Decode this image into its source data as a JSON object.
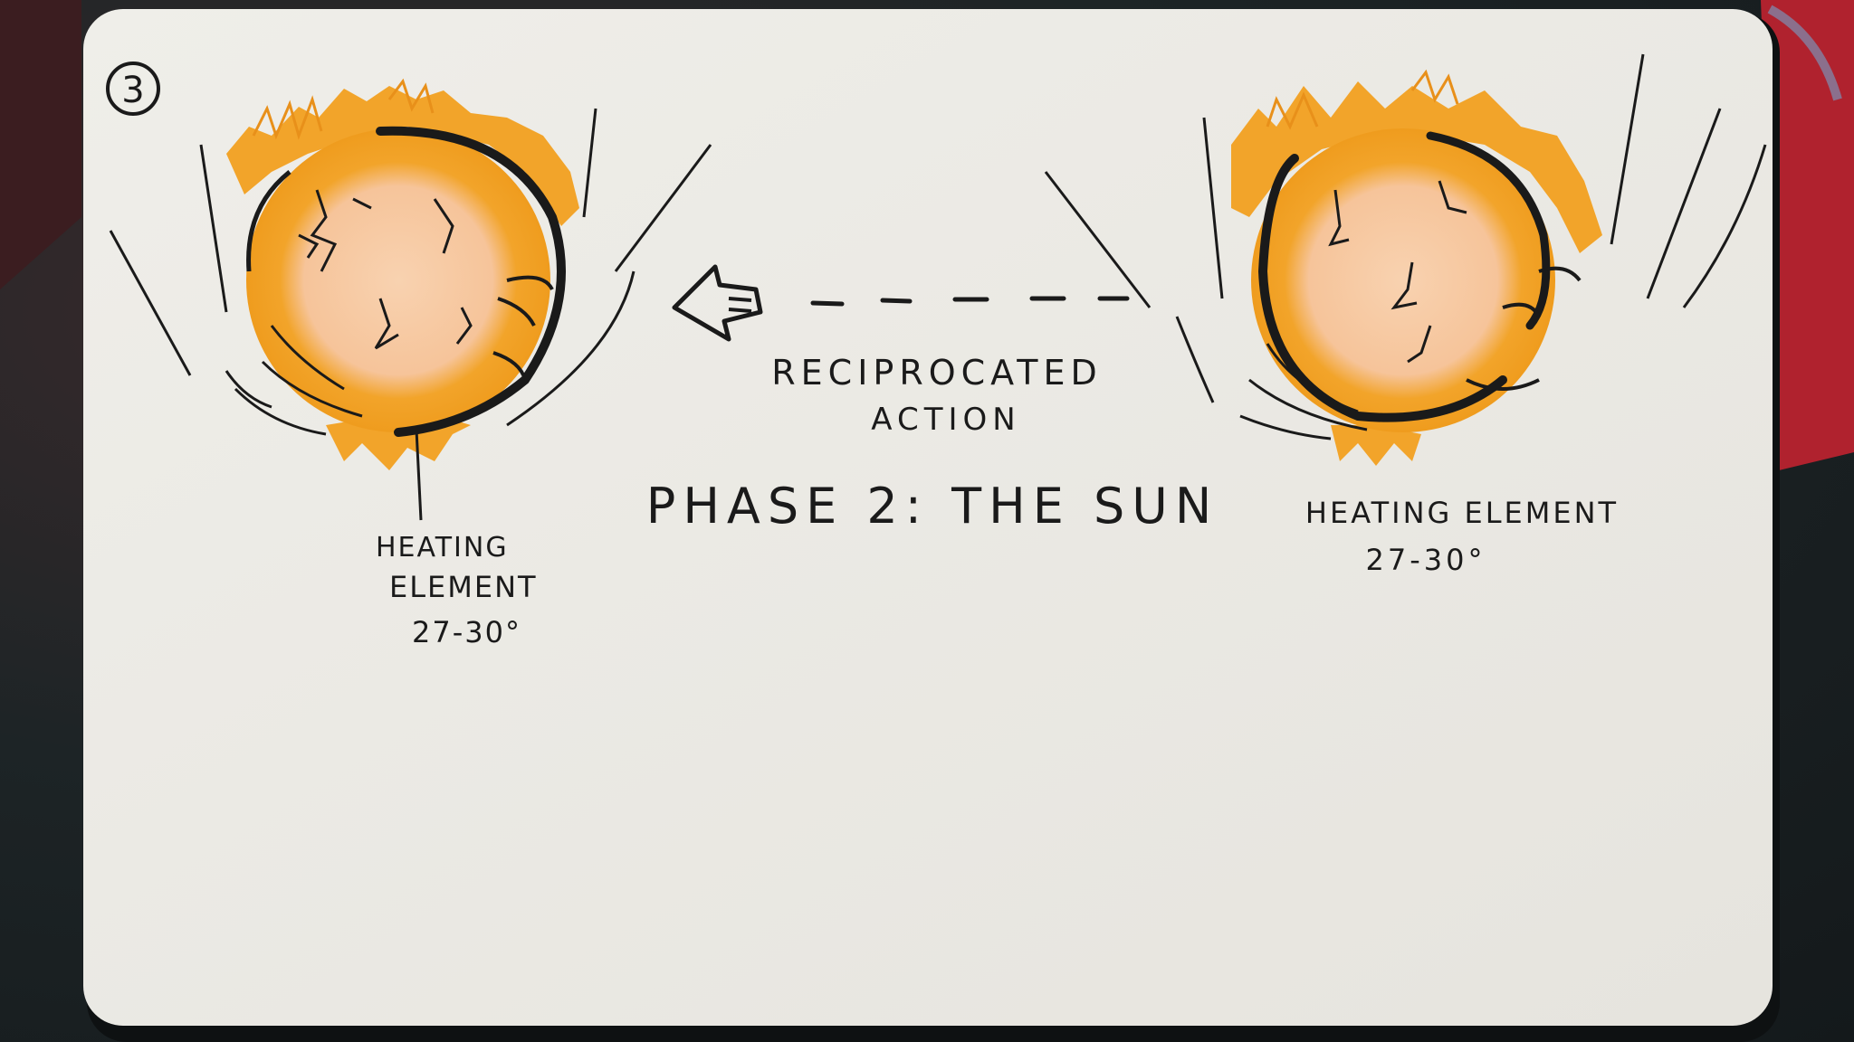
{
  "sketch": {
    "page_number": "3",
    "arrow_label_line1": "RECIPROCATED",
    "arrow_label_line2": "ACTION",
    "title": "PHASE 2: THE SUN",
    "left_label_line1": "HEATING",
    "left_label_line2": "ELEMENT",
    "left_label_line3": "27-30°",
    "right_label_line1": "HEATING ELEMENT",
    "right_label_line2": "27-30°"
  },
  "colors": {
    "paper": "#ecebe6",
    "ink": "#1a1a1a",
    "sun_orange": "#f2a42a",
    "sun_peach": "#f6c9a0",
    "bookmark_red": "#b0222e",
    "background_dark": "#1d2426"
  }
}
